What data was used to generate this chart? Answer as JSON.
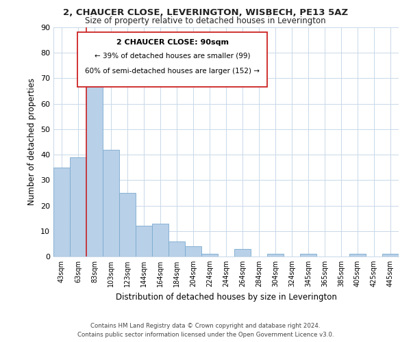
{
  "title1": "2, CHAUCER CLOSE, LEVERINGTON, WISBECH, PE13 5AZ",
  "title2": "Size of property relative to detached houses in Leverington",
  "xlabel": "Distribution of detached houses by size in Leverington",
  "ylabel": "Number of detached properties",
  "bar_labels": [
    "43sqm",
    "63sqm",
    "83sqm",
    "103sqm",
    "123sqm",
    "144sqm",
    "164sqm",
    "184sqm",
    "204sqm",
    "224sqm",
    "244sqm",
    "264sqm",
    "284sqm",
    "304sqm",
    "324sqm",
    "345sqm",
    "365sqm",
    "385sqm",
    "405sqm",
    "425sqm",
    "445sqm"
  ],
  "bar_values": [
    35,
    39,
    73,
    42,
    25,
    12,
    13,
    6,
    4,
    1,
    0,
    3,
    0,
    1,
    0,
    1,
    0,
    0,
    1,
    0,
    1
  ],
  "bar_color": "#b8d0e8",
  "bar_edge_color": "#7aaace",
  "vline_x_index": 2,
  "vline_color": "#cc2222",
  "ylim": [
    0,
    90
  ],
  "yticks": [
    0,
    10,
    20,
    30,
    40,
    50,
    60,
    70,
    80,
    90
  ],
  "annotation_title": "2 CHAUCER CLOSE: 90sqm",
  "annotation_line1": "← 39% of detached houses are smaller (99)",
  "annotation_line2": "60% of semi-detached houses are larger (152) →",
  "footer1": "Contains HM Land Registry data © Crown copyright and database right 2024.",
  "footer2": "Contains public sector information licensed under the Open Government Licence v3.0.",
  "background_color": "#ffffff",
  "grid_color": "#c8d8e8"
}
